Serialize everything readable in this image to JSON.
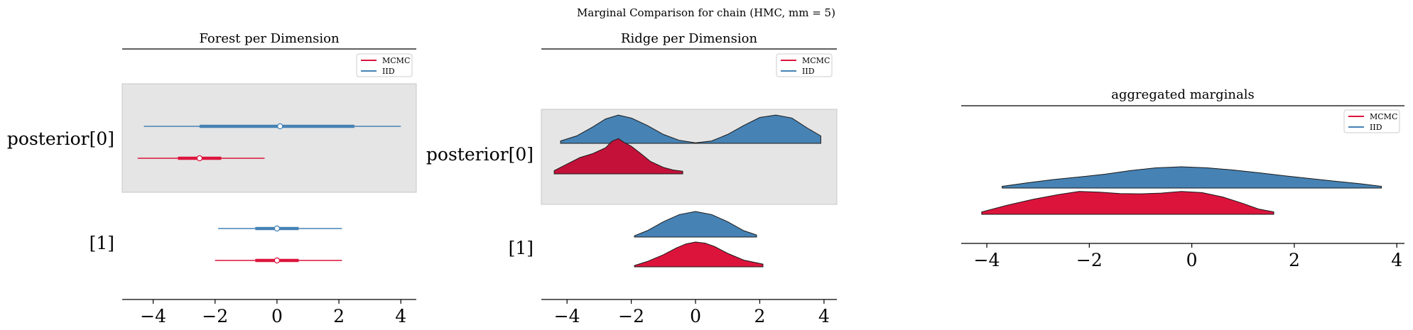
{
  "figure": {
    "suptitle": "Marginal Comparison for chain (HMC, mm = 5)"
  },
  "colors": {
    "mcmc": "#dc143c",
    "mcmc_dark": "#c3113a",
    "iid": "#4682b4",
    "band": "#e5e5e5",
    "band_edge": "#c8c8c8"
  },
  "chart_data": [
    {
      "type": "forest",
      "title": "Forest per Dimension",
      "xlim": [
        -5,
        4.5
      ],
      "xticks": [
        -4,
        -2,
        0,
        2,
        4
      ],
      "xtick_labels": [
        "−4",
        "−2",
        "0",
        "2",
        "4"
      ],
      "row_labels": [
        "posterior[0]",
        "[1]"
      ],
      "legend": {
        "placement": "top-right",
        "entries": [
          "MCMC",
          "IID"
        ]
      },
      "series": [
        {
          "name": "MCMC",
          "rows": [
            {
              "label": "posterior[0]",
              "min": -4.5,
              "q25": -3.2,
              "median": -2.5,
              "q75": -1.8,
              "max": -0.4
            },
            {
              "label": "[1]",
              "min": -2.0,
              "q25": -0.7,
              "median": 0.0,
              "q75": 0.7,
              "max": 2.1
            }
          ]
        },
        {
          "name": "IID",
          "rows": [
            {
              "label": "posterior[0]",
              "min": -4.3,
              "q25": -2.5,
              "median": 0.1,
              "q75": 2.5,
              "max": 4.0
            },
            {
              "label": "[1]",
              "min": -1.9,
              "q25": -0.7,
              "median": 0.0,
              "q75": 0.7,
              "max": 2.1
            }
          ]
        }
      ]
    },
    {
      "type": "ridge",
      "title": "Ridge per Dimension",
      "xlim": [
        -4.8,
        4.4
      ],
      "xticks": [
        -4,
        -2,
        0,
        2,
        4
      ],
      "xtick_labels": [
        "−4",
        "−2",
        "0",
        "2",
        "4"
      ],
      "row_labels": [
        "posterior[0]",
        "[1]"
      ],
      "legend": {
        "placement": "top-right",
        "entries": [
          "MCMC",
          "IID"
        ]
      },
      "series": [
        {
          "name": "IID",
          "rows": [
            {
              "label": "posterior[0]",
              "x": [
                -4.2,
                -3.7,
                -3.2,
                -2.8,
                -2.4,
                -2.0,
                -1.5,
                -1.0,
                -0.5,
                0.0,
                0.5,
                1.0,
                1.5,
                2.0,
                2.5,
                3.0,
                3.5,
                3.9
              ],
              "density": [
                0.08,
                0.25,
                0.55,
                0.82,
                0.95,
                0.85,
                0.6,
                0.3,
                0.1,
                0.02,
                0.08,
                0.3,
                0.6,
                0.87,
                0.95,
                0.85,
                0.5,
                0.25
              ]
            },
            {
              "label": "[1]",
              "x": [
                -1.9,
                -1.5,
                -1.0,
                -0.5,
                0.0,
                0.5,
                1.0,
                1.5,
                1.9
              ],
              "density": [
                0.05,
                0.25,
                0.6,
                0.88,
                1.0,
                0.88,
                0.6,
                0.25,
                0.08
              ]
            }
          ]
        },
        {
          "name": "MCMC",
          "rows": [
            {
              "label": "posterior[0]",
              "x": [
                -4.4,
                -4.0,
                -3.6,
                -3.2,
                -2.8,
                -2.6,
                -2.4,
                -2.2,
                -2.0,
                -1.7,
                -1.4,
                -1.0,
                -0.7,
                -0.4
              ],
              "density": [
                0.1,
                0.3,
                0.5,
                0.62,
                0.8,
                1.0,
                1.08,
                0.95,
                0.85,
                0.62,
                0.38,
                0.2,
                0.12,
                0.08
              ]
            },
            {
              "label": "[1]",
              "x": [
                -1.9,
                -1.5,
                -1.0,
                -0.6,
                -0.3,
                0.0,
                0.3,
                0.6,
                1.0,
                1.5,
                2.1
              ],
              "density": [
                0.05,
                0.2,
                0.45,
                0.7,
                0.85,
                0.92,
                0.88,
                0.75,
                0.5,
                0.25,
                0.1
              ]
            }
          ]
        }
      ]
    },
    {
      "type": "ridge",
      "title": "aggregated marginals",
      "xlim": [
        -4.5,
        4.15
      ],
      "xticks": [
        -4,
        -2,
        0,
        2,
        4
      ],
      "xtick_labels": [
        "−4",
        "−2",
        "0",
        "2",
        "4"
      ],
      "legend": {
        "placement": "top-right",
        "entries": [
          "MCMC",
          "IID"
        ]
      },
      "series": [
        {
          "name": "IID",
          "x": [
            -3.7,
            -3.2,
            -2.7,
            -2.2,
            -1.7,
            -1.2,
            -0.7,
            -0.2,
            0.3,
            0.8,
            1.3,
            1.8,
            2.3,
            2.8,
            3.3,
            3.7
          ],
          "density": [
            0.08,
            0.25,
            0.4,
            0.52,
            0.65,
            0.82,
            0.95,
            1.0,
            0.95,
            0.85,
            0.72,
            0.58,
            0.45,
            0.32,
            0.2,
            0.08
          ]
        },
        {
          "name": "MCMC",
          "x": [
            -4.1,
            -3.6,
            -3.1,
            -2.6,
            -2.2,
            -1.8,
            -1.4,
            -1.0,
            -0.6,
            -0.2,
            0.2,
            0.6,
            1.0,
            1.3,
            1.6
          ],
          "density": [
            0.1,
            0.38,
            0.62,
            0.82,
            0.95,
            0.92,
            0.86,
            0.85,
            0.88,
            0.95,
            0.9,
            0.72,
            0.45,
            0.22,
            0.1
          ]
        }
      ]
    }
  ]
}
